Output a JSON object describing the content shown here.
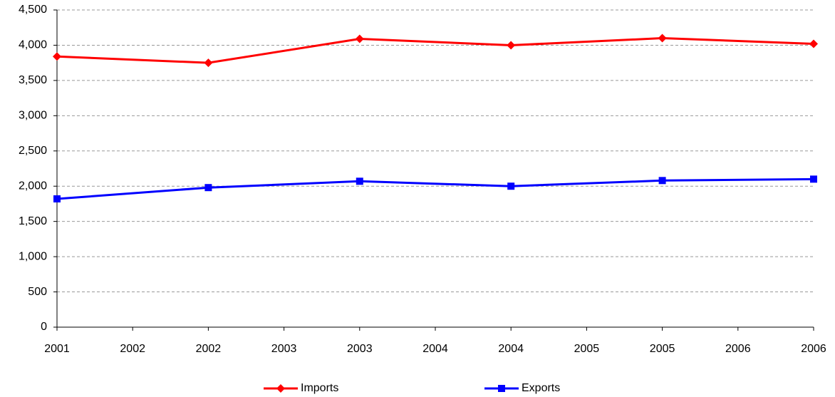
{
  "chart_data": {
    "type": "line",
    "x": [
      2001,
      2002,
      2003,
      2004,
      2005,
      2006
    ],
    "series": [
      {
        "name": "Imports",
        "color": "#ff0000",
        "marker": "diamond",
        "values": [
          3840,
          3750,
          4090,
          4000,
          4100,
          4020
        ]
      },
      {
        "name": "Exports",
        "color": "#0000ff",
        "marker": "square",
        "values": [
          1820,
          1980,
          2070,
          2000,
          2080,
          2100
        ]
      }
    ],
    "xlim": [
      2001,
      2006
    ],
    "xticks": [
      2001,
      {
        "value": 2001.5,
        "label": "2002"
      },
      2002,
      {
        "value": 2002.5,
        "label": "2003"
      },
      2003,
      {
        "value": 2003.5,
        "label": "2004"
      },
      2004,
      {
        "value": 2004.5,
        "label": "2005"
      },
      2005,
      {
        "value": 2005.5,
        "label": "2006"
      },
      2006
    ],
    "ylim": [
      0,
      4500
    ],
    "yticks": [
      0,
      500,
      {
        "value": 1000,
        "label": "1,000"
      },
      {
        "value": 1500,
        "label": "1,500"
      },
      {
        "value": 2000,
        "label": "2,000"
      },
      {
        "value": 2500,
        "label": "2,500"
      },
      {
        "value": 3000,
        "label": "3,000"
      },
      {
        "value": 3500,
        "label": "3,500"
      },
      {
        "value": 4000,
        "label": "4,000"
      },
      {
        "value": 4500,
        "label": "4,500"
      }
    ],
    "grid": true,
    "legend": "bottom"
  }
}
